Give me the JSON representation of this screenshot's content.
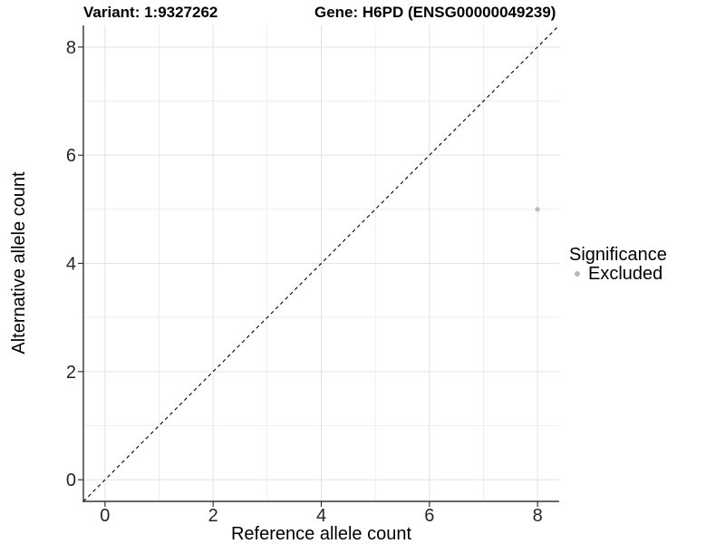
{
  "titles": {
    "variant": "Variant: 1:9327262",
    "gene": "Gene: H6PD (ENSG00000049239)"
  },
  "chart_data": {
    "type": "scatter",
    "xlabel": "Reference allele count",
    "ylabel": "Alternative allele count",
    "xlim": [
      -0.4,
      8.4
    ],
    "ylim": [
      -0.4,
      8.4
    ],
    "xticks": [
      0,
      2,
      4,
      6,
      8
    ],
    "yticks": [
      0,
      2,
      4,
      6,
      8
    ],
    "xticks_minor": [
      1,
      3,
      5,
      7
    ],
    "yticks_minor": [
      1,
      3,
      5,
      7
    ],
    "grid": "major+minor",
    "reference_line": {
      "style": "dashed",
      "slope": 1,
      "intercept": 0
    },
    "series": [
      {
        "name": "Excluded",
        "color": "#b9b9b9",
        "points": [
          {
            "x": 8,
            "y": 5
          }
        ]
      }
    ],
    "legend": {
      "title": "Significance",
      "position": "right",
      "items": [
        {
          "label": "Excluded",
          "color": "#b9b9b9"
        }
      ]
    }
  },
  "colors": {
    "background": "#ffffff",
    "axis_line": "#333333",
    "tick_mark": "#333333",
    "tick_label": "#262626",
    "grid_major": "#e3e3e3",
    "grid_minor": "#eeeeee",
    "reference_line": "#000000"
  }
}
